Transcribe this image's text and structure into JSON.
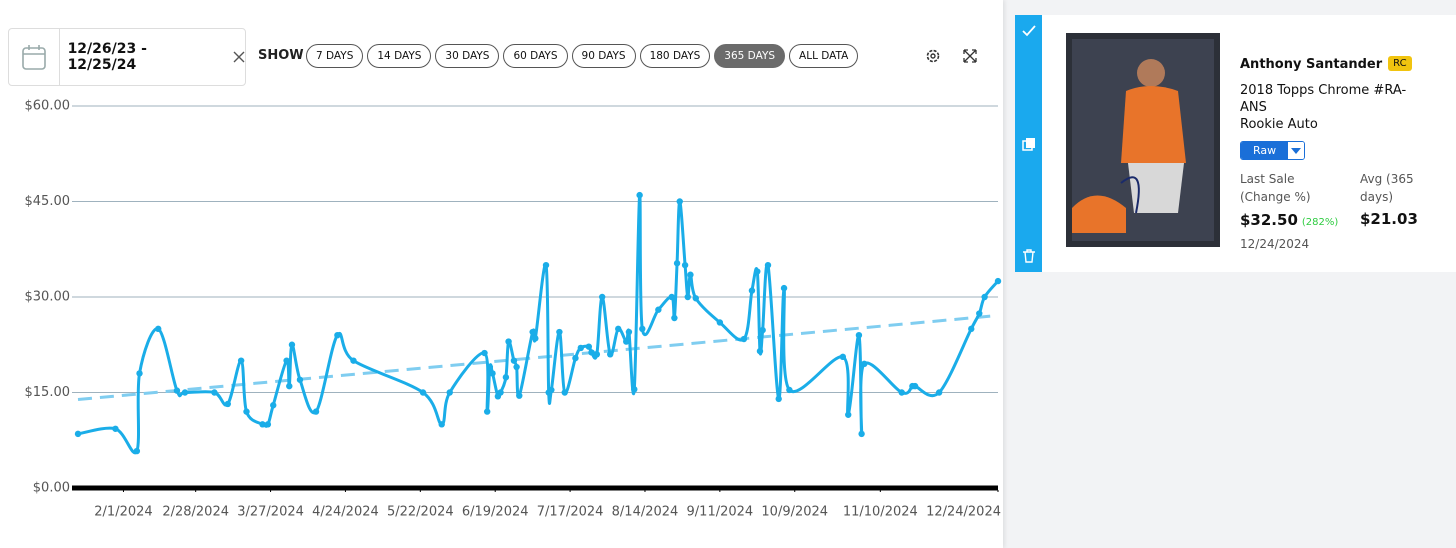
{
  "toolbar": {
    "date_range": "12/26/23 - 12/25/24",
    "show_label": "SHOW",
    "ranges": [
      "7 DAYS",
      "14 DAYS",
      "30 DAYS",
      "60 DAYS",
      "90 DAYS",
      "180 DAYS",
      "365 DAYS",
      "ALL DATA"
    ],
    "active_range": 6
  },
  "chart_data": {
    "type": "line",
    "x": [
      "2024-01-15",
      "2024-01-29",
      "2024-02-06",
      "2024-02-07",
      "2024-02-14",
      "2024-02-21",
      "2024-02-24",
      "2024-03-06",
      "2024-03-11",
      "2024-03-16",
      "2024-03-18",
      "2024-03-24",
      "2024-03-26",
      "2024-03-28",
      "2024-04-02",
      "2024-04-03",
      "2024-04-04",
      "2024-04-07",
      "2024-04-13",
      "2024-04-21",
      "2024-04-27",
      "2024-05-23",
      "2024-05-30",
      "2024-06-02",
      "2024-06-15",
      "2024-06-16",
      "2024-06-17",
      "2024-06-18",
      "2024-06-20",
      "2024-06-21",
      "2024-06-23",
      "2024-06-24",
      "2024-06-26",
      "2024-06-27",
      "2024-06-28",
      "2024-07-03",
      "2024-07-04",
      "2024-07-08",
      "2024-07-09",
      "2024-07-10",
      "2024-07-13",
      "2024-07-15",
      "2024-07-19",
      "2024-07-21",
      "2024-07-24",
      "2024-07-25",
      "2024-07-27",
      "2024-07-29",
      "2024-08-01",
      "2024-08-04",
      "2024-08-07",
      "2024-08-08",
      "2024-08-10",
      "2024-08-12",
      "2024-08-13",
      "2024-08-19",
      "2024-08-24",
      "2024-08-25",
      "2024-08-26",
      "2024-08-27",
      "2024-08-29",
      "2024-08-30",
      "2024-08-31",
      "2024-09-02",
      "2024-09-11",
      "2024-09-20",
      "2024-09-23",
      "2024-09-25",
      "2024-09-26",
      "2024-09-27",
      "2024-09-29",
      "2024-10-03",
      "2024-10-05",
      "2024-10-07",
      "2024-10-27",
      "2024-10-29",
      "2024-11-02",
      "2024-11-03",
      "2024-11-04",
      "2024-11-18",
      "2024-11-22",
      "2024-11-23",
      "2024-12-02",
      "2024-12-14",
      "2024-12-17",
      "2024-12-19",
      "2024-12-24"
    ],
    "series": [
      {
        "color": "#1aade8",
        "values": [
          8.5,
          9.3,
          5.8,
          18,
          25,
          15.3,
          15,
          15,
          13.2,
          20,
          12,
          10,
          10,
          13,
          20,
          16,
          22.5,
          17,
          12,
          24,
          20,
          15,
          10,
          15,
          21.2,
          12,
          19,
          18,
          14.4,
          15,
          17.4,
          23,
          20,
          19,
          14.5,
          24.5,
          23.5,
          35,
          15,
          15.4,
          24.5,
          15,
          20.4,
          22,
          22.2,
          21.3,
          21,
          30,
          21,
          25,
          23,
          24.5,
          15.5,
          46,
          25,
          28,
          30,
          26.7,
          35.3,
          45,
          35,
          30,
          33.5,
          29.8,
          26,
          23.4,
          31,
          34,
          21.5,
          24.8,
          35,
          14,
          31.4,
          15.4,
          20.6,
          11.5,
          24,
          8.5,
          19.5,
          15,
          16,
          16,
          15,
          25,
          27.4,
          30,
          32.5
        ]
      }
    ],
    "trend": {
      "color": "#7fcdf0",
      "dashed": true,
      "x": [
        "2024-01-15",
        "2024-12-24"
      ],
      "values": [
        13.9,
        27.1
      ]
    },
    "xlim": [
      "2024-01-15",
      "2024-12-24"
    ],
    "xticks": [
      {
        "value": "2024-02-01",
        "label": "2/1/2024"
      },
      {
        "value": "2024-02-28",
        "label": "2/28/2024"
      },
      {
        "value": "2024-03-27",
        "label": "3/27/2024"
      },
      {
        "value": "2024-04-24",
        "label": "4/24/2024"
      },
      {
        "value": "2024-05-22",
        "label": "5/22/2024"
      },
      {
        "value": "2024-06-19",
        "label": "6/19/2024"
      },
      {
        "value": "2024-07-17",
        "label": "7/17/2024"
      },
      {
        "value": "2024-08-14",
        "label": "8/14/2024"
      },
      {
        "value": "2024-09-11",
        "label": "9/11/2024"
      },
      {
        "value": "2024-10-09",
        "label": "10/9/2024"
      },
      {
        "value": "2024-11-10",
        "label": "11/10/2024"
      },
      {
        "value": "2024-12-24",
        "label": "12/24/2024"
      }
    ],
    "ylim": [
      0,
      60
    ],
    "yticks": [
      {
        "value": 60,
        "label": "$60.00"
      },
      {
        "value": 45,
        "label": "$45.00"
      },
      {
        "value": 30,
        "label": "$30.00"
      },
      {
        "value": 15,
        "label": "$15.00"
      },
      {
        "value": 0,
        "label": "$0.00"
      }
    ],
    "grid": true
  },
  "card": {
    "player": "Anthony Santander",
    "badge": "RC",
    "set": "2018 Topps Chrome #RA-ANS",
    "variant": "Rookie Auto",
    "grade": "Raw",
    "last_sale_label": "Last Sale (Change %)",
    "last_sale": "$32.50",
    "change": "(282%)",
    "avg_label": "Avg (365 days)",
    "avg": "$21.03",
    "date": "12/24/2024"
  }
}
